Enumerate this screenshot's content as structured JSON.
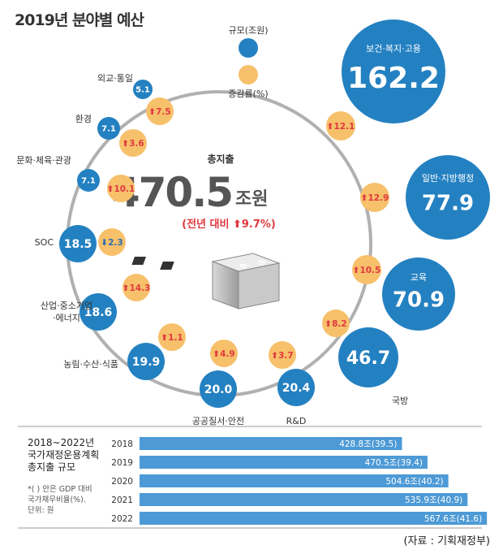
{
  "header": {
    "title": "2019년 분야별 예산"
  },
  "legend": {
    "scale_label": "규모(조원)",
    "growth_label": "증감률(%)"
  },
  "center": {
    "label": "총지출",
    "value": "470.5",
    "unit": "조원",
    "change_text": "(전년 대비 ⬆9.7%)"
  },
  "colors": {
    "blue": "#2481c1",
    "orange": "#f7c06b",
    "ring": "#b0b0b0",
    "red": "#e0393e",
    "bar": "#4d9ad6"
  },
  "chart_data": [
    {
      "type": "bubble",
      "title": "2019년 분야별 예산",
      "units": {
        "size": "조원",
        "growth": "%"
      },
      "series": [
        {
          "name": "보건·복지·고용",
          "budget": 162.2,
          "growth": 12.1,
          "direction": "up"
        },
        {
          "name": "일반·지방행정",
          "budget": 77.9,
          "growth": 12.9,
          "direction": "up"
        },
        {
          "name": "교육",
          "budget": 70.9,
          "growth": 10.5,
          "direction": "up"
        },
        {
          "name": "국방",
          "budget": 46.7,
          "growth": 8.2,
          "direction": "up"
        },
        {
          "name": "R&D",
          "budget": 20.4,
          "growth": 3.7,
          "direction": "up"
        },
        {
          "name": "공공질서·안전",
          "budget": 20.0,
          "growth": 4.9,
          "direction": "up"
        },
        {
          "name": "농림·수산·식품",
          "budget": 19.9,
          "growth": 1.1,
          "direction": "up"
        },
        {
          "name": "산업·중소기업 ·에너지",
          "budget": 18.6,
          "growth": 14.3,
          "direction": "up"
        },
        {
          "name": "SOC",
          "budget": 18.5,
          "growth": 2.3,
          "direction": "down"
        },
        {
          "name": "문화·체육·관광",
          "budget": 7.1,
          "growth": 10.1,
          "direction": "up"
        },
        {
          "name": "환경",
          "budget": 7.1,
          "growth": 3.6,
          "direction": "up"
        },
        {
          "name": "외교·통일",
          "budget": 5.1,
          "growth": 7.5,
          "direction": "up"
        }
      ],
      "total": {
        "value": 470.5,
        "growth": 9.7
      }
    },
    {
      "type": "bar",
      "title": "2018~2022년 국가재정운용계획 총지출 규모",
      "note": "*( ) 안은 GDP 대비 국가채무비율(%). 단위: 원",
      "categories": [
        "2018",
        "2019",
        "2020",
        "2021",
        "2022"
      ],
      "values": [
        428.8,
        470.5,
        504.6,
        535.9,
        567.6
      ],
      "debt_ratio": [
        39.5,
        39.4,
        40.2,
        40.9,
        41.6
      ],
      "labels": [
        "428.8조(39.5)",
        "470.5조(39.4)",
        "504.6조(40.2)",
        "535.9조(40.9)",
        "567.6조(41.6)"
      ]
    }
  ],
  "panel2": {
    "title_lines": [
      "2018~2022년",
      "국가재정운용계획",
      "총지출 규모"
    ],
    "note_lines": [
      "*( ) 안은 GDP 대비",
      "국가채무비율(%).",
      "단위: 원"
    ]
  },
  "source": "(자료 : 기획재정부)"
}
